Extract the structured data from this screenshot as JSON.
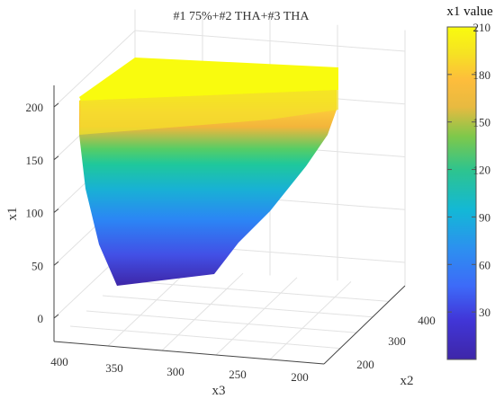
{
  "chart_data": {
    "type": "surface3d",
    "title": "#1 75%+#2 THA+#3 THA",
    "zlabel": "x1",
    "xlabel": "x3",
    "ylabel": "x2",
    "colorbar_label": "x1 value",
    "z_ticks": [
      "0",
      "50",
      "100",
      "150",
      "200"
    ],
    "x3_ticks": [
      "400",
      "350",
      "300",
      "250",
      "200"
    ],
    "x2_ticks": [
      "200",
      "300",
      "400"
    ],
    "colorbar_ticks": [
      "30",
      "60",
      "90",
      "120",
      "150",
      "180",
      "210"
    ],
    "zlim": [
      0,
      220
    ],
    "clim": [
      0,
      210
    ],
    "colormap": "parula",
    "grid": true,
    "surface_profile": [
      {
        "x1": 30,
        "band": "dark-blue"
      },
      {
        "x1": 60,
        "band": "blue"
      },
      {
        "x1": 100,
        "band": "light-blue"
      },
      {
        "x1": 130,
        "band": "teal"
      },
      {
        "x1": 160,
        "band": "green"
      },
      {
        "x1": 180,
        "band": "orange"
      },
      {
        "x1": 210,
        "band": "yellow"
      }
    ]
  }
}
